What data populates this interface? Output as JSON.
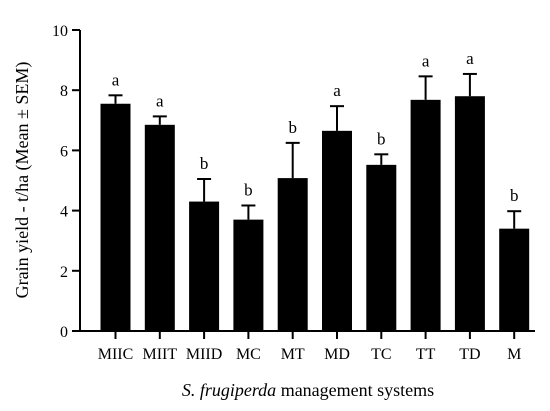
{
  "chart_data": {
    "type": "bar",
    "categories": [
      "MIIC",
      "MIIT",
      "MIID",
      "MC",
      "MT",
      "MD",
      "TC",
      "TT",
      "TD",
      "M"
    ],
    "values": [
      7.55,
      6.85,
      4.3,
      3.7,
      5.08,
      6.65,
      5.52,
      7.68,
      7.8,
      3.4
    ],
    "errors": [
      0.28,
      0.28,
      0.75,
      0.47,
      1.17,
      0.82,
      0.35,
      0.78,
      0.74,
      0.58
    ],
    "significance": [
      "a",
      "a",
      "b",
      "b",
      "b",
      "a",
      "b",
      "a",
      "a",
      "b"
    ],
    "ylabel": "Grain yield - t/ha (Mean ± SEM)",
    "xlabel_italic": "S. frugiperda",
    "xlabel_rest": " management systems",
    "ylim": [
      0,
      10
    ],
    "yticks": [
      "0",
      "2",
      "4",
      "6",
      "8",
      "10"
    ],
    "bar_color": "#000000",
    "grid": false
  }
}
